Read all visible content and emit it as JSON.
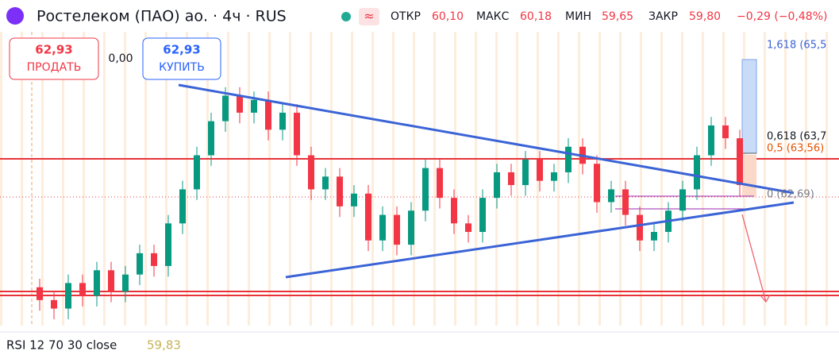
{
  "header": {
    "title": "Ростелеком (ПАО) ао. · 4ч · RUS",
    "ohlc": [
      {
        "label": "ОТКР",
        "value": "60,10"
      },
      {
        "label": "МАКС",
        "value": "60,18"
      },
      {
        "label": "МИН",
        "value": "59,65"
      },
      {
        "label": "ЗАКР",
        "value": "59,80"
      }
    ],
    "change": "−0,29 (−0,48%)"
  },
  "trade": {
    "sell_price": "62,93",
    "sell_label": "ПРОДАТЬ",
    "spread": "0,00",
    "buy_price": "62,93",
    "buy_label": "КУПИТЬ"
  },
  "fib_labels": [
    "1,618 (65,5",
    "0,618 (63,7",
    "0,5 (63,56)",
    "0 (62,69)"
  ],
  "rsi": {
    "label": "RSI 12 70 30 close",
    "value": "59,83"
  },
  "chart_data": {
    "type": "candlestick",
    "up_color": "#089981",
    "down_color": "#f23645",
    "ylim": [
      59.6,
      66.5
    ],
    "open": [
      60.5,
      60.2,
      60.0,
      60.6,
      60.3,
      60.9,
      60.4,
      60.8,
      61.3,
      61.0,
      62.0,
      62.8,
      63.6,
      64.4,
      65.0,
      64.6,
      64.9,
      64.2,
      64.6,
      63.6,
      62.8,
      63.1,
      62.4,
      62.7,
      61.6,
      62.2,
      61.5,
      62.3,
      63.3,
      62.6,
      62.0,
      61.8,
      62.6,
      63.2,
      62.9,
      63.5,
      63.0,
      63.2,
      63.8,
      63.4,
      62.5,
      62.8,
      62.2,
      61.6,
      61.8,
      62.3,
      62.8,
      63.6,
      64.3,
      64.0
    ],
    "high": [
      60.7,
      60.4,
      60.8,
      60.8,
      61.1,
      61.1,
      61.0,
      61.5,
      61.5,
      62.2,
      63.0,
      63.8,
      64.6,
      65.2,
      65.2,
      65.1,
      65.1,
      64.8,
      64.8,
      63.8,
      63.3,
      63.3,
      62.9,
      62.9,
      62.4,
      62.4,
      62.5,
      63.5,
      63.5,
      62.8,
      62.2,
      62.8,
      63.4,
      63.4,
      63.7,
      63.7,
      63.4,
      64.0,
      64.0,
      63.6,
      63.0,
      63.0,
      62.4,
      62.0,
      62.5,
      63.0,
      63.8,
      64.5,
      64.5,
      64.2
    ],
    "low": [
      59.95,
      59.75,
      59.75,
      60.05,
      60.05,
      60.15,
      60.15,
      60.55,
      60.75,
      60.75,
      61.75,
      62.55,
      63.35,
      64.15,
      64.35,
      64.35,
      63.95,
      63.95,
      63.35,
      62.55,
      62.55,
      62.15,
      62.15,
      61.35,
      61.35,
      61.25,
      61.25,
      62.05,
      62.35,
      61.75,
      61.55,
      61.55,
      62.35,
      62.65,
      62.65,
      62.75,
      62.75,
      62.95,
      63.15,
      62.25,
      62.25,
      61.95,
      61.35,
      61.35,
      61.55,
      62.05,
      62.55,
      63.35,
      63.75,
      62.65
    ],
    "close": [
      60.2,
      60.0,
      60.6,
      60.3,
      60.9,
      60.4,
      60.8,
      61.3,
      61.0,
      62.0,
      62.8,
      63.6,
      64.4,
      65.0,
      64.6,
      64.9,
      64.2,
      64.6,
      63.6,
      62.8,
      63.1,
      62.4,
      62.7,
      61.6,
      62.2,
      61.5,
      62.3,
      63.3,
      62.6,
      62.0,
      61.8,
      62.6,
      63.2,
      62.9,
      63.5,
      63.0,
      63.2,
      63.8,
      63.4,
      62.5,
      62.8,
      62.2,
      61.6,
      61.8,
      62.3,
      62.8,
      63.6,
      64.3,
      64.0,
      62.9
    ]
  }
}
